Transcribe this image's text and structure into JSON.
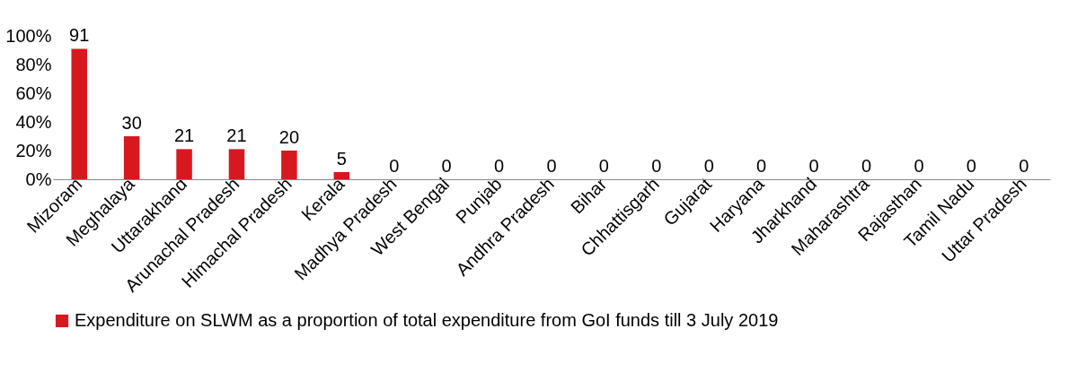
{
  "chart_data": {
    "type": "bar",
    "categories": [
      "Mizoram",
      "Meghalaya",
      "Uttarakhand",
      "Arunachal Pradesh",
      "Himachal Pradesh",
      "Kerala",
      "Madhya Pradesh",
      "West Bengal",
      "Punjab",
      "Andhra Pradesh",
      "Bihar",
      "Chhattisgarh",
      "Gujarat",
      "Haryana",
      "Jharkhand",
      "Maharashtra",
      "Rajasthan",
      "Tamil Nadu",
      "Uttar Pradesh"
    ],
    "series": [
      {
        "name": "Expenditure on SLWM as a proportion of total expenditure from GoI funds till 3 July 2019",
        "color": "#d7191f",
        "values": [
          91,
          30,
          21,
          21,
          20,
          5,
          0,
          0,
          0,
          0,
          0,
          0,
          0,
          0,
          0,
          0,
          0,
          0,
          0
        ]
      }
    ],
    "ylim": [
      0,
      100
    ],
    "yticks": [
      {
        "value": 0,
        "label": "0%"
      },
      {
        "value": 20,
        "label": "20%"
      },
      {
        "value": 40,
        "label": "40%"
      },
      {
        "value": 60,
        "label": "60%"
      },
      {
        "value": 80,
        "label": "80%"
      },
      {
        "value": 100,
        "label": "100%"
      }
    ],
    "data_labels": true,
    "grid": false,
    "legend": "bottom"
  }
}
